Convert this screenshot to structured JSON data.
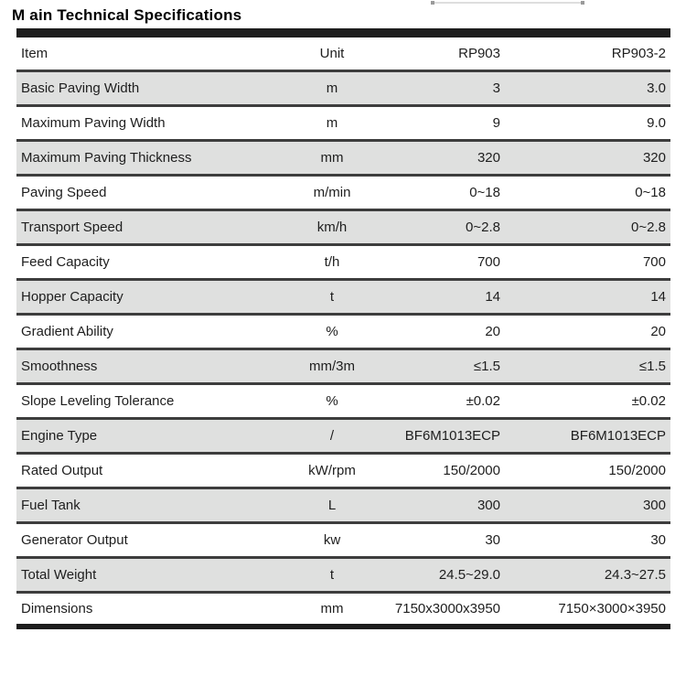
{
  "title": "M ain Technical Specifications",
  "colors": {
    "top_bottom_bar": "#1d1d1d",
    "row_separator": "#3d3d3d",
    "alt_row_background": "#dfe0df",
    "text": "#1e1e1e"
  },
  "table": {
    "columns": [
      "Item",
      "Unit",
      "RP903",
      "RP903-2"
    ],
    "rows": [
      {
        "item": "Basic Paving  Width",
        "unit": "m",
        "rp903": "3",
        "rp903_2": "3.0"
      },
      {
        "item": "Maximum Paving Width",
        "unit": "m",
        "rp903": "9",
        "rp903_2": "9.0"
      },
      {
        "item": "Maximum Paving Thickness",
        "unit": "mm",
        "rp903": "320",
        "rp903_2": "320"
      },
      {
        "item": "Paving Speed",
        "unit": "m/min",
        "rp903": "0~18",
        "rp903_2": "0~18"
      },
      {
        "item": "Transport Speed",
        "unit": "km/h",
        "rp903": "0~2.8",
        "rp903_2": "0~2.8"
      },
      {
        "item": "Feed Capacity",
        "unit": "t/h",
        "rp903": "700",
        "rp903_2": "700"
      },
      {
        "item": "Hopper Capacity",
        "unit": "t",
        "rp903": "14",
        "rp903_2": "14"
      },
      {
        "item": "Gradient Ability",
        "unit": "%",
        "rp903": "20",
        "rp903_2": "20"
      },
      {
        "item": "Smoothness",
        "unit": "mm/3m",
        "rp903": "≤1.5",
        "rp903_2": "≤1.5"
      },
      {
        "item": "Slope Leveling Tolerance",
        "unit": "%",
        "rp903": "±0.02",
        "rp903_2": "±0.02"
      },
      {
        "item": "Engine Type",
        "unit": "/",
        "rp903": "BF6M1013ECP",
        "rp903_2": "BF6M1013ECP"
      },
      {
        "item": "Rated Output",
        "unit": "kW/rpm",
        "rp903": "150/2000",
        "rp903_2": "150/2000"
      },
      {
        "item": "Fuel Tank",
        "unit": "L",
        "rp903": "300",
        "rp903_2": "300"
      },
      {
        "item": "Generator Output",
        "unit": "kw",
        "rp903": "30",
        "rp903_2": "30"
      },
      {
        "item": "Total Weight",
        "unit": "t",
        "rp903": "24.5~29.0",
        "rp903_2": "24.3~27.5"
      },
      {
        "item": "Dimensions",
        "unit": "mm",
        "rp903": "7150x3000x3950",
        "rp903_2": "7150×3000×3950"
      }
    ]
  }
}
